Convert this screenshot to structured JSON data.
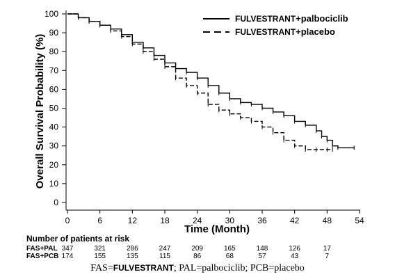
{
  "chart_data": {
    "type": "line",
    "xlabel": "Time (Month)",
    "ylabel": "Overall Survival Probability (%)",
    "xlim": [
      0,
      54
    ],
    "ylim": [
      0,
      100
    ],
    "x_ticks": [
      0,
      6,
      12,
      18,
      24,
      30,
      36,
      42,
      48,
      54
    ],
    "y_ticks": [
      0,
      10,
      20,
      30,
      40,
      50,
      60,
      70,
      80,
      90,
      100
    ],
    "legend_position": "top-right",
    "series": [
      {
        "name_prefix": "FULVESTRANT",
        "name_suffix": "+palbociclib",
        "style": "solid",
        "x": [
          0,
          2,
          4,
          6,
          8,
          10,
          12,
          14,
          16,
          18,
          20,
          22,
          24,
          26,
          28,
          30,
          32,
          34,
          36,
          38,
          40,
          42,
          44,
          46,
          47,
          48,
          49,
          50,
          53
        ],
        "y": [
          100,
          98,
          96,
          94,
          92,
          89,
          85,
          82,
          78,
          74,
          71,
          69,
          66,
          62,
          58,
          55,
          53,
          52,
          50,
          48,
          46,
          43,
          41,
          38,
          35,
          33,
          30,
          29,
          29
        ]
      },
      {
        "name_prefix": "FULVESTRANT",
        "name_suffix": "+placebo",
        "style": "dashed",
        "x": [
          0,
          2,
          4,
          6,
          8,
          10,
          12,
          14,
          16,
          18,
          20,
          22,
          24,
          26,
          28,
          30,
          32,
          34,
          36,
          38,
          40,
          42,
          44,
          46,
          48,
          49
        ],
        "y": [
          100,
          98,
          96,
          94,
          91,
          88,
          84,
          80,
          76,
          72,
          66,
          62,
          58,
          52,
          49,
          47,
          45,
          43,
          40,
          37,
          33,
          30,
          28,
          28,
          28,
          28
        ]
      }
    ]
  },
  "risk_table": {
    "title": "Number of patients at risk",
    "rows": [
      {
        "label": "FAS+PAL",
        "values": [
          "347",
          "321",
          "286",
          "247",
          "209",
          "165",
          "148",
          "126",
          "17"
        ]
      },
      {
        "label": "FAS+PCB",
        "values": [
          "174",
          "155",
          "135",
          "115",
          "86",
          "68",
          "57",
          "43",
          "7"
        ]
      }
    ]
  },
  "footnote": {
    "part1": "FAS=",
    "part2": "FULVESTRANT",
    "part3": "; PAL=palbociclib; PCB=placebo"
  }
}
